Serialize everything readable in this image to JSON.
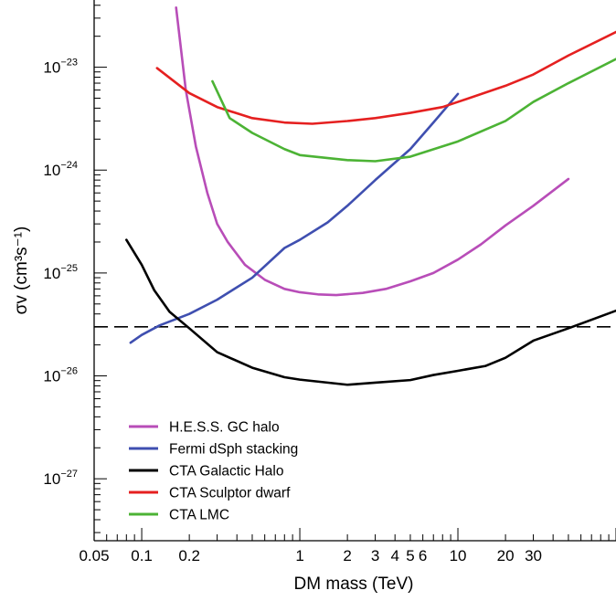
{
  "chart_data": {
    "type": "line",
    "title": "",
    "xlabel": "DM mass (TeV)",
    "ylabel": "σv (cm³s⁻¹)",
    "x_scale": "log",
    "y_scale": "log",
    "xlim": [
      0.05,
      100
    ],
    "ylim": [
      2.5e-28,
      4.5e-23
    ],
    "x_ticks": [
      {
        "value": 0.05,
        "label": "0.05"
      },
      {
        "value": 0.1,
        "label": "0.1"
      },
      {
        "value": 0.2,
        "label": "0.2"
      },
      {
        "value": 1,
        "label": "1"
      },
      {
        "value": 2,
        "label": "2"
      },
      {
        "value": 3,
        "label": "3"
      },
      {
        "value": 4,
        "label": "4"
      },
      {
        "value": 5,
        "label": "5"
      },
      {
        "value": 6,
        "label": "6"
      },
      {
        "value": 10,
        "label": "10"
      },
      {
        "value": 20,
        "label": "20"
      },
      {
        "value": 30,
        "label": "30"
      }
    ],
    "y_ticks": [
      {
        "value": 1e-27,
        "base": "10",
        "exponent": "−27"
      },
      {
        "value": 1e-26,
        "base": "10",
        "exponent": "−26"
      },
      {
        "value": 1e-25,
        "base": "10",
        "exponent": "−25"
      },
      {
        "value": 1e-24,
        "base": "10",
        "exponent": "−24"
      },
      {
        "value": 1e-23,
        "base": "10",
        "exponent": "−23"
      }
    ],
    "reference_line": {
      "y": 3e-26,
      "style": "dashed",
      "color": "#000000"
    },
    "legend_position": "bottom-left",
    "series": [
      {
        "name": "H.E.S.S. GC halo",
        "color": "#b84db8",
        "points": [
          [
            0.165,
            3.8e-23
          ],
          [
            0.19,
            6e-24
          ],
          [
            0.22,
            1.7e-24
          ],
          [
            0.26,
            6e-25
          ],
          [
            0.3,
            3e-25
          ],
          [
            0.35,
            2e-25
          ],
          [
            0.45,
            1.2e-25
          ],
          [
            0.6,
            8.6e-26
          ],
          [
            0.8,
            7e-26
          ],
          [
            1.0,
            6.5e-26
          ],
          [
            1.3,
            6.2e-26
          ],
          [
            1.7,
            6.1e-26
          ],
          [
            2.5,
            6.4e-26
          ],
          [
            3.5,
            7e-26
          ],
          [
            5,
            8.3e-26
          ],
          [
            7,
            1e-25
          ],
          [
            10,
            1.35e-25
          ],
          [
            14,
            1.9e-25
          ],
          [
            20,
            2.9e-25
          ],
          [
            30,
            4.5e-25
          ],
          [
            50,
            8.2e-25
          ]
        ]
      },
      {
        "name": "Fermi dSph stacking",
        "color": "#3f4fb0",
        "points": [
          [
            0.085,
            2.1e-26
          ],
          [
            0.1,
            2.5e-26
          ],
          [
            0.13,
            3.1e-26
          ],
          [
            0.2,
            4e-26
          ],
          [
            0.3,
            5.5e-26
          ],
          [
            0.5,
            9e-26
          ],
          [
            0.8,
            1.75e-25
          ],
          [
            1.0,
            2.1e-25
          ],
          [
            1.5,
            3.1e-25
          ],
          [
            2.0,
            4.5e-25
          ],
          [
            3.0,
            8e-25
          ],
          [
            5.0,
            1.6e-24
          ],
          [
            7.0,
            2.9e-24
          ],
          [
            10,
            5.5e-24
          ]
        ]
      },
      {
        "name": "CTA Galactic Halo",
        "color": "#000000",
        "points": [
          [
            0.08,
            2.1e-25
          ],
          [
            0.1,
            1.2e-25
          ],
          [
            0.12,
            6.8e-26
          ],
          [
            0.15,
            4.2e-26
          ],
          [
            0.2,
            2.9e-26
          ],
          [
            0.3,
            1.7e-26
          ],
          [
            0.5,
            1.2e-26
          ],
          [
            0.8,
            9.7e-27
          ],
          [
            1.0,
            9.2e-27
          ],
          [
            2.0,
            8.2e-27
          ],
          [
            3.0,
            8.6e-27
          ],
          [
            5.0,
            9.1e-27
          ],
          [
            7.0,
            1.02e-26
          ],
          [
            10,
            1.12e-26
          ],
          [
            15,
            1.25e-26
          ],
          [
            20,
            1.5e-26
          ],
          [
            30,
            2.2e-26
          ],
          [
            50,
            2.9e-26
          ],
          [
            100,
            4.3e-26
          ]
        ]
      },
      {
        "name": "CTA Sculptor dwarf",
        "color": "#e52020",
        "points": [
          [
            0.125,
            9.8e-24
          ],
          [
            0.2,
            5.6e-24
          ],
          [
            0.3,
            4.1e-24
          ],
          [
            0.5,
            3.2e-24
          ],
          [
            0.8,
            2.9e-24
          ],
          [
            1.2,
            2.82e-24
          ],
          [
            2.0,
            3e-24
          ],
          [
            3.0,
            3.2e-24
          ],
          [
            5.0,
            3.6e-24
          ],
          [
            8.0,
            4.1e-24
          ],
          [
            10,
            4.6e-24
          ],
          [
            20,
            6.6e-24
          ],
          [
            30,
            8.5e-24
          ],
          [
            50,
            1.3e-23
          ],
          [
            100,
            2.2e-23
          ]
        ]
      },
      {
        "name": "CTA LMC",
        "color": "#4cb335",
        "points": [
          [
            0.28,
            7.3e-24
          ],
          [
            0.36,
            3.2e-24
          ],
          [
            0.5,
            2.3e-24
          ],
          [
            0.8,
            1.6e-24
          ],
          [
            1.0,
            1.4e-24
          ],
          [
            2.0,
            1.25e-24
          ],
          [
            3.0,
            1.22e-24
          ],
          [
            5.0,
            1.35e-24
          ],
          [
            10,
            1.9e-24
          ],
          [
            20,
            3e-24
          ],
          [
            30,
            4.6e-24
          ],
          [
            50,
            7e-24
          ],
          [
            100,
            1.2e-23
          ]
        ]
      }
    ]
  }
}
